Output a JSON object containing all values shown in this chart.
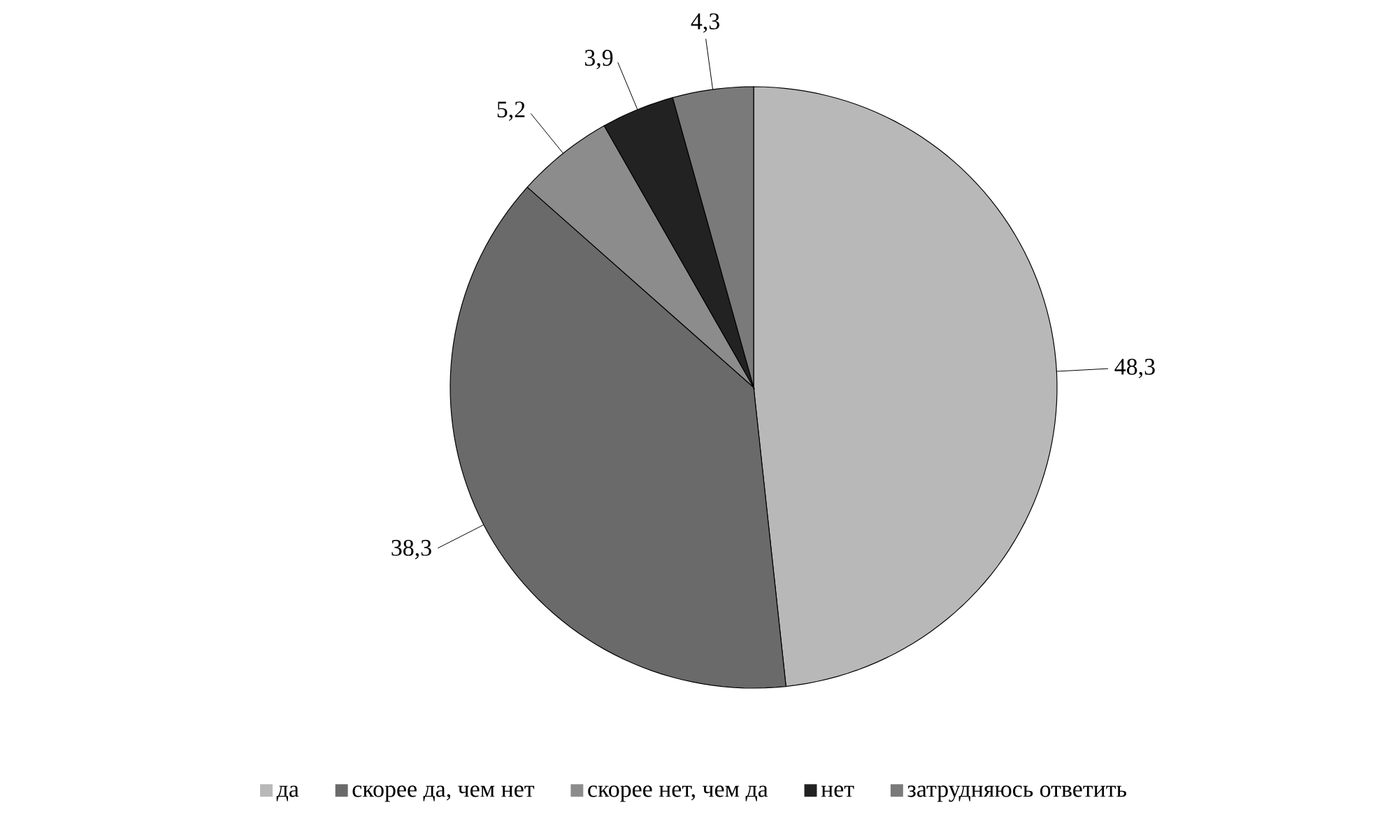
{
  "chart_data": {
    "type": "pie",
    "categories": [
      "да",
      "скорее да, чем нет",
      "скорее нет, чем да",
      "нет",
      "затрудняюсь ответить"
    ],
    "values": [
      48.3,
      38.3,
      5.2,
      3.9,
      4.3
    ],
    "value_labels": [
      "48,3",
      "38,3",
      "5,2",
      "3,9",
      "4,3"
    ],
    "colors": [
      "#b8b8b8",
      "#6a6a6a",
      "#8c8c8c",
      "#222222",
      "#7a7a7a"
    ],
    "legend": "bottom"
  }
}
